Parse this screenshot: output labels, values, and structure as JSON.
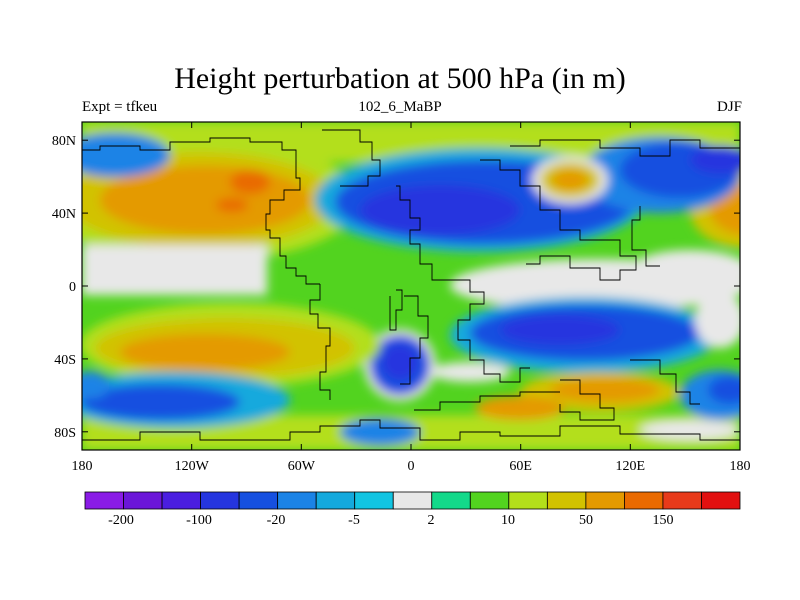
{
  "title": "Height perturbation at 500 hPa (in m)",
  "subtitle_left": "Expt = tfkeu",
  "subtitle_center": "102_6_MaBP",
  "subtitle_right": "DJF",
  "axes": {
    "x_ticks": [
      "180",
      "120W",
      "60W",
      "0",
      "60E",
      "120E",
      "180"
    ],
    "y_ticks": [
      "80N",
      "40N",
      "0",
      "40S",
      "80S"
    ]
  },
  "colorbar": {
    "colors": [
      "#8a1be6",
      "#6b16d8",
      "#4a1ee0",
      "#2535df",
      "#1650e0",
      "#1b83e6",
      "#14a9dd",
      "#12c4e2",
      "#e8e8e8",
      "#13d98a",
      "#52d31f",
      "#b3df1a",
      "#d2c200",
      "#e49a00",
      "#e96a00",
      "#e83a1a",
      "#e21010"
    ],
    "labels": [
      "-200",
      "-100",
      "-20",
      "-5",
      "2",
      "10",
      "50",
      "150"
    ]
  }
}
